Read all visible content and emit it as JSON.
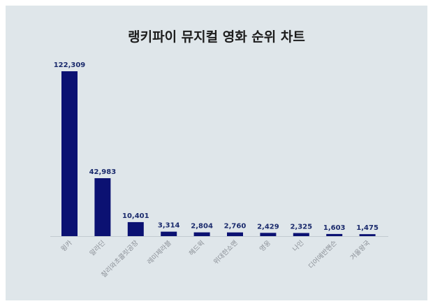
{
  "chart_data": {
    "type": "bar",
    "title": "랭키파이 뮤지컬 영화 순위 차트",
    "categories": [
      "윙카",
      "알라딘",
      "찰리와초콜릿공장",
      "레미제라블",
      "헤드윅",
      "위대한쇼맨",
      "영웅",
      "나인",
      "디어에반핸슨",
      "겨울왕국"
    ],
    "values": [
      122309,
      42983,
      10401,
      3314,
      2804,
      2760,
      2429,
      2325,
      1603,
      1475
    ],
    "value_labels": [
      "122,309",
      "42,983",
      "10,401",
      "3,314",
      "2,804",
      "2,760",
      "2,429",
      "2,325",
      "1,603",
      "1,475"
    ],
    "xlabel": "",
    "ylabel": "",
    "ylim": [
      0,
      122309
    ],
    "grid": false,
    "bar_color": "#0b1172",
    "background_color": "#dfe6ea"
  }
}
